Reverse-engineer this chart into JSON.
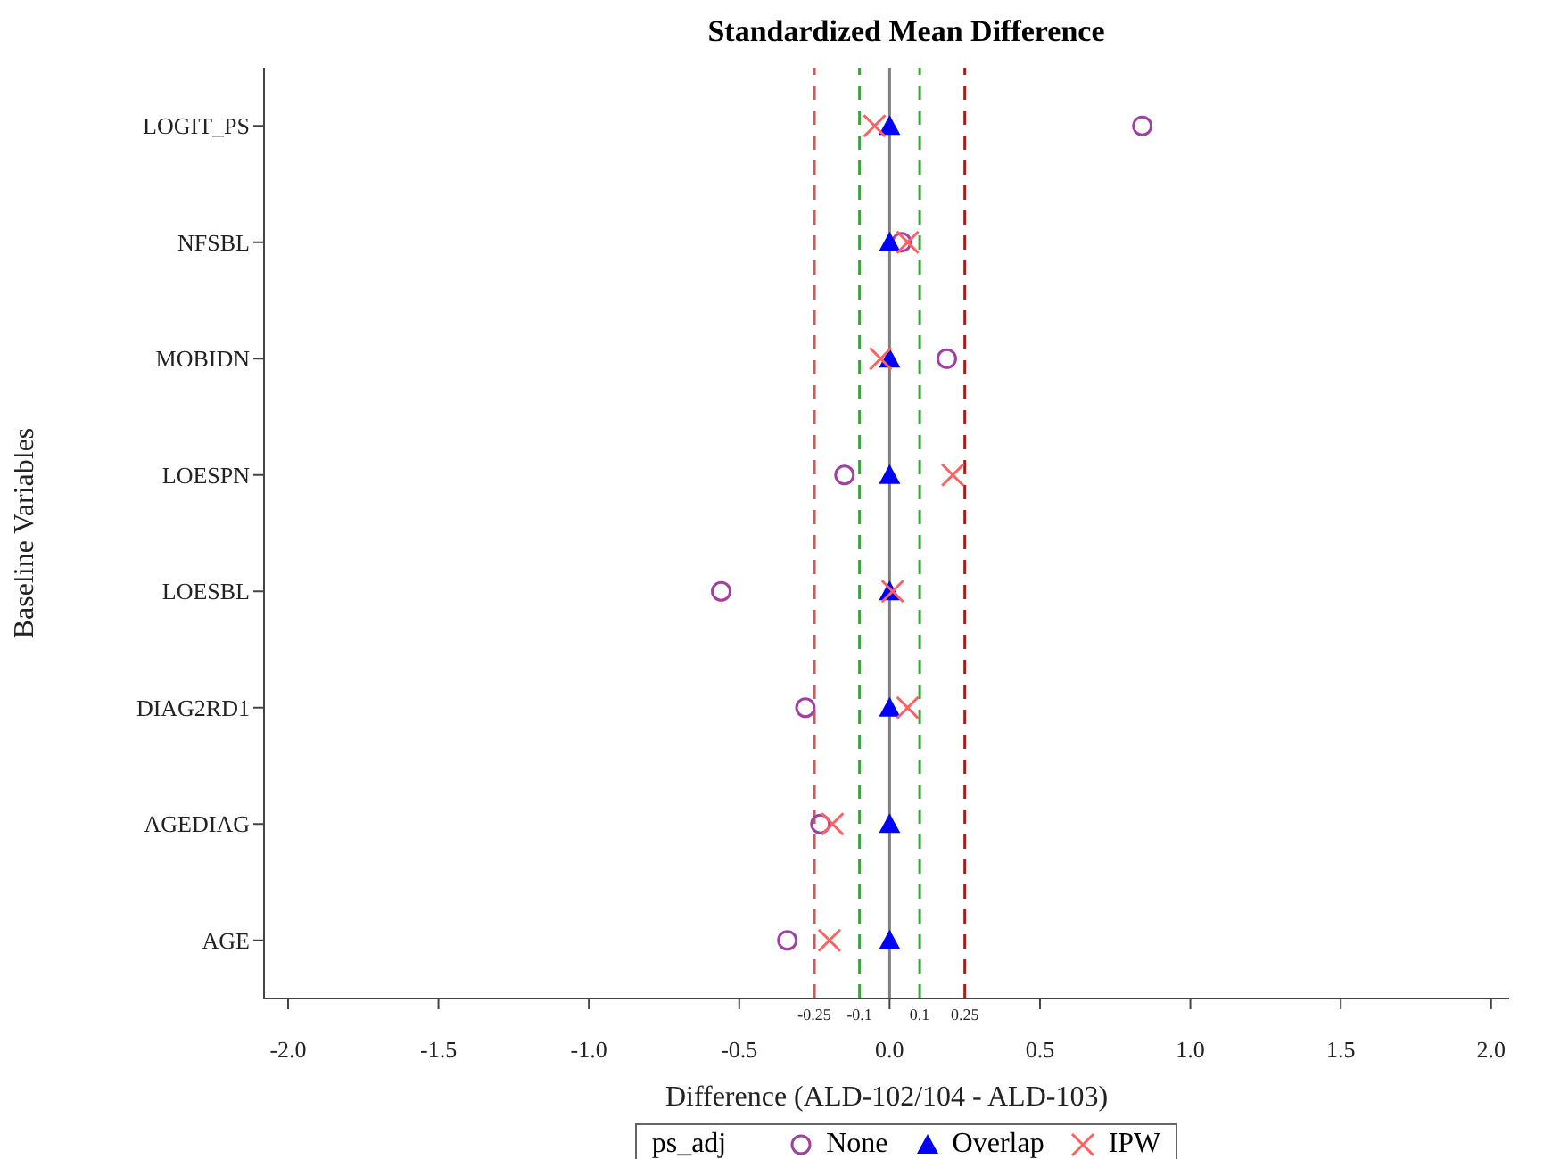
{
  "chart_data": {
    "type": "scatter",
    "orientation": "horizontal",
    "title": "Standardized Mean Difference",
    "xlabel": "Difference (ALD-102/104 - ALD-103)",
    "ylabel": "Baseline Variables",
    "legend_title": "ps_adj",
    "legend": "bottom",
    "grid": false,
    "categories": [
      "LOGIT_PS",
      "NFSBL",
      "MOBIDN",
      "LOESPN",
      "LOESBL",
      "DIAG2RD1",
      "AGEDIAG",
      "AGE"
    ],
    "series": [
      {
        "name": "None",
        "color": "#a040a0",
        "marker": "circle",
        "values": [
          0.84,
          0.04,
          0.19,
          -0.15,
          -0.56,
          -0.28,
          -0.23,
          -0.34
        ]
      },
      {
        "name": "Overlap",
        "color": "#0000ff",
        "marker": "triangle",
        "values": [
          0,
          0,
          0,
          0,
          0,
          0,
          0,
          0
        ]
      },
      {
        "name": "IPW",
        "color": "#ff6060",
        "marker": "cross",
        "values": [
          -0.05,
          0.06,
          -0.03,
          0.21,
          0.01,
          0.06,
          -0.19,
          -0.2
        ]
      }
    ],
    "xlim": [
      -2.08,
      2.06
    ],
    "xticks": [
      {
        "value": -2,
        "label": "-2.0"
      },
      {
        "value": -1.5,
        "label": "-1.5"
      },
      {
        "value": -1,
        "label": "-1.0"
      },
      {
        "value": -0.5,
        "label": "-0.5"
      },
      {
        "value": 0,
        "label": "0.0"
      },
      {
        "value": 0.5,
        "label": "0.5"
      },
      {
        "value": 1,
        "label": "1.0"
      },
      {
        "value": 1.5,
        "label": "1.5"
      },
      {
        "value": 2,
        "label": "2.0"
      }
    ],
    "ref_lines": [
      {
        "axis": "x",
        "value": 0,
        "color": "#808080",
        "line_style": "solid"
      },
      {
        "axis": "x",
        "value": -0.25,
        "label": "-0.25",
        "color": "#c06060",
        "line_style": "dashed"
      },
      {
        "axis": "x",
        "value": -0.1,
        "label": "-0.1",
        "color": "#40a040",
        "line_style": "dashed"
      },
      {
        "axis": "x",
        "value": 0.1,
        "label": "0.1",
        "color": "#40a040",
        "line_style": "dashed"
      },
      {
        "axis": "x",
        "value": 0.25,
        "label": "0.25",
        "color": "#a02020",
        "line_style": "dashed"
      }
    ]
  }
}
